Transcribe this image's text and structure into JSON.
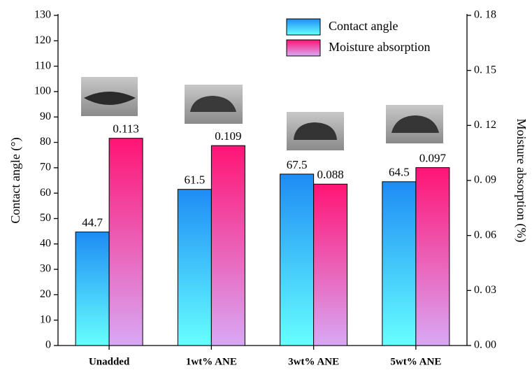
{
  "chart_data": {
    "type": "bar",
    "categories": [
      "Unadded",
      "1wt% ANE",
      "3wt% ANE",
      "5wt% ANE"
    ],
    "y_label": "Contact angle (°)",
    "y2_label": "Moisture absorption (%)",
    "ylim": [
      0,
      130
    ],
    "yticks": [
      0,
      10,
      20,
      30,
      40,
      50,
      60,
      70,
      80,
      90,
      100,
      110,
      120,
      130
    ],
    "y2lim": [
      0,
      0.18
    ],
    "y2ticks": [
      {
        "value": 0,
        "label": "0. 00"
      },
      {
        "value": 0.03,
        "label": "0. 03"
      },
      {
        "value": 0.06,
        "label": "0. 06"
      },
      {
        "value": 0.09,
        "label": "0. 09"
      },
      {
        "value": 0.12,
        "label": "0. 12"
      },
      {
        "value": 0.15,
        "label": "0. 15"
      },
      {
        "value": 0.18,
        "label": "0. 18"
      }
    ],
    "legend": "top-right",
    "series": [
      {
        "name": "Contact angle",
        "color": "#1e8cf5",
        "gradient_end": "#66ffff",
        "values": [
          44.7,
          61.5,
          67.5,
          64.5
        ]
      },
      {
        "name": "Moisture absorption",
        "color": "#ff1475",
        "gradient_end": "#d8a8f5",
        "axis": "y2",
        "values": [
          0.113,
          0.109,
          0.088,
          0.097
        ]
      }
    ]
  }
}
